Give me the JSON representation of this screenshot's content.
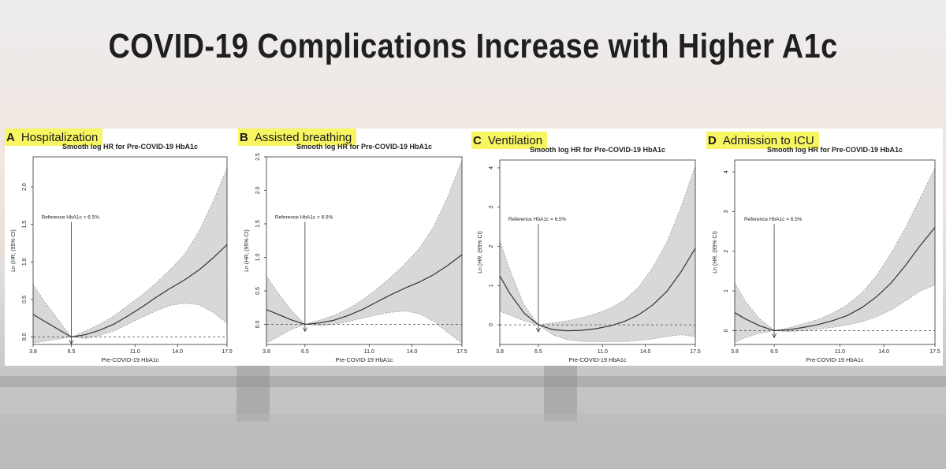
{
  "slide": {
    "title": "COVID-19 Complications Increase with Higher A1c"
  },
  "colors": {
    "highlight": "#f7f562",
    "ci_band": "#d8d8d8",
    "line": "#333333"
  },
  "chart_data": [
    {
      "type": "line",
      "panel_letter": "A",
      "panel_label": "Hospitalization",
      "title": "Smooth log HR for Pre-COVID-19 HbA1c",
      "xlabel": "Pre-COVID-19 HbA1c",
      "ylabel": "Ln (HR, (95% CI)",
      "xlim": [
        3.8,
        17.5
      ],
      "ylim": [
        -0.1,
        2.4
      ],
      "xticks": [
        "3.8",
        "6.5",
        "11.0",
        "14.0",
        "17.5"
      ],
      "yticks": [
        "0.0",
        "0.5",
        "1.0",
        "1.5",
        "2.0"
      ],
      "reference_line": 0,
      "reference_x": 6.5,
      "annotation": "Reference HbA1c = 6.5%",
      "x": [
        3.8,
        4.5,
        5.5,
        6.5,
        7.5,
        8.5,
        9.5,
        10.5,
        11.5,
        12.5,
        13.5,
        14.5,
        15.5,
        16.5,
        17.5
      ],
      "y": [
        0.3,
        0.22,
        0.11,
        0.0,
        0.03,
        0.09,
        0.17,
        0.28,
        0.4,
        0.53,
        0.65,
        0.76,
        0.89,
        1.05,
        1.23
      ],
      "lower": [
        -0.08,
        -0.06,
        -0.03,
        0.0,
        -0.02,
        0.02,
        0.08,
        0.17,
        0.26,
        0.35,
        0.42,
        0.45,
        0.43,
        0.33,
        0.18
      ],
      "upper": [
        0.7,
        0.5,
        0.25,
        0.0,
        0.08,
        0.17,
        0.28,
        0.42,
        0.56,
        0.72,
        0.9,
        1.1,
        1.4,
        1.8,
        2.25
      ]
    },
    {
      "type": "line",
      "panel_letter": "B",
      "panel_label": "Assisted breathing",
      "title": "Smooth log HR for Pre-COVID-19 HbA1c",
      "xlabel": "Pre-COVID-19 HbA1c",
      "ylabel": "Ln (HR, (95% CI)",
      "xlim": [
        3.8,
        17.5
      ],
      "ylim": [
        -0.3,
        2.5
      ],
      "xticks": [
        "3.8",
        "6.5",
        "11.0",
        "14.0",
        "17.5"
      ],
      "yticks": [
        "0.0",
        "0.5",
        "1.0",
        "1.5",
        "2.0",
        "2.5"
      ],
      "reference_line": 0,
      "reference_x": 6.5,
      "annotation": "Reference HbA1c = 6.5%",
      "x": [
        3.8,
        4.5,
        5.5,
        6.5,
        7.5,
        8.5,
        9.5,
        10.5,
        11.5,
        12.5,
        13.5,
        14.5,
        15.5,
        16.5,
        17.5
      ],
      "y": [
        0.22,
        0.16,
        0.07,
        0.0,
        0.02,
        0.06,
        0.13,
        0.22,
        0.33,
        0.44,
        0.54,
        0.63,
        0.74,
        0.88,
        1.04
      ],
      "lower": [
        -0.28,
        -0.2,
        -0.08,
        0.0,
        -0.02,
        0.0,
        0.04,
        0.09,
        0.14,
        0.18,
        0.2,
        0.16,
        0.05,
        -0.12,
        -0.28
      ],
      "upper": [
        0.72,
        0.5,
        0.22,
        0.0,
        0.06,
        0.13,
        0.23,
        0.36,
        0.52,
        0.7,
        0.9,
        1.13,
        1.45,
        1.9,
        2.45
      ]
    },
    {
      "type": "line",
      "panel_letter": "C",
      "panel_label": "Ventilation",
      "title": "Smooth log HR for Pre-COVID-19 HbA1c",
      "xlabel": "Pre-COVID-19 HbA1c",
      "ylabel": "Ln (HR, (95% CI)",
      "xlim": [
        3.8,
        17.5
      ],
      "ylim": [
        -0.5,
        4.2
      ],
      "xticks": [
        "3.8",
        "6.5",
        "11.0",
        "14.0",
        "17.5"
      ],
      "yticks": [
        "0",
        "1",
        "2",
        "3",
        "4"
      ],
      "reference_line": 0,
      "reference_x": 6.5,
      "annotation": "Reference HbA1c = 6.5%",
      "x": [
        3.8,
        4.5,
        5.5,
        6.5,
        7.5,
        8.5,
        9.5,
        10.5,
        11.5,
        12.5,
        13.5,
        14.5,
        15.5,
        16.5,
        17.5
      ],
      "y": [
        1.25,
        0.8,
        0.3,
        0.0,
        -0.12,
        -0.15,
        -0.14,
        -0.1,
        -0.03,
        0.08,
        0.25,
        0.5,
        0.85,
        1.35,
        1.95
      ],
      "lower": [
        0.35,
        0.25,
        0.1,
        0.0,
        -0.25,
        -0.38,
        -0.42,
        -0.43,
        -0.43,
        -0.43,
        -0.4,
        -0.36,
        -0.3,
        -0.25,
        -0.3
      ],
      "upper": [
        2.15,
        1.4,
        0.5,
        0.0,
        0.05,
        0.1,
        0.18,
        0.28,
        0.42,
        0.62,
        0.95,
        1.45,
        2.1,
        3.0,
        4.05
      ]
    },
    {
      "type": "line",
      "panel_letter": "D",
      "panel_label": "Admission to ICU",
      "title": "Smooth log HR for Pre-COVID-19 HbA1c",
      "xlabel": "Pre-COVID-19 HbA1c",
      "ylabel": "Ln (HR, (95% CI)",
      "xlim": [
        3.8,
        17.5
      ],
      "ylim": [
        -0.35,
        4.3
      ],
      "xticks": [
        "3.8",
        "6.5",
        "11.0",
        "14.0",
        "17.5"
      ],
      "yticks": [
        "0",
        "1",
        "2",
        "3",
        "4"
      ],
      "reference_line": 0,
      "reference_x": 6.5,
      "annotation": "Reference HbA1c = 6.5%",
      "x": [
        3.8,
        4.5,
        5.5,
        6.5,
        7.5,
        8.5,
        9.5,
        10.5,
        11.5,
        12.5,
        13.5,
        14.5,
        15.5,
        16.5,
        17.5
      ],
      "y": [
        0.45,
        0.3,
        0.12,
        0.0,
        0.02,
        0.08,
        0.15,
        0.25,
        0.38,
        0.58,
        0.85,
        1.2,
        1.65,
        2.15,
        2.6
      ],
      "lower": [
        -0.3,
        -0.18,
        -0.07,
        0.0,
        -0.03,
        0.0,
        0.04,
        0.08,
        0.14,
        0.22,
        0.35,
        0.52,
        0.75,
        1.0,
        1.15
      ],
      "upper": [
        1.2,
        0.75,
        0.3,
        0.0,
        0.07,
        0.17,
        0.28,
        0.44,
        0.65,
        0.95,
        1.38,
        1.95,
        2.6,
        3.35,
        4.1
      ]
    }
  ]
}
